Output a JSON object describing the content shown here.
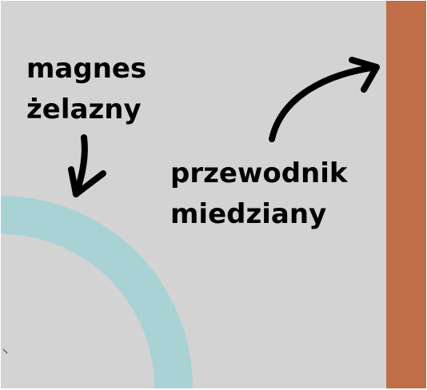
{
  "labels": {
    "magnet": {
      "line1": "magnes",
      "line2": "żelazny"
    },
    "conductor": {
      "line1": "przewodnik",
      "line2": "miedziany"
    }
  },
  "colors": {
    "background": "#d3d3d3",
    "magnet_ring": "#a8d2d4",
    "copper_conductor": "#bf6e47",
    "arrows": "#000000",
    "text": "#000000"
  }
}
